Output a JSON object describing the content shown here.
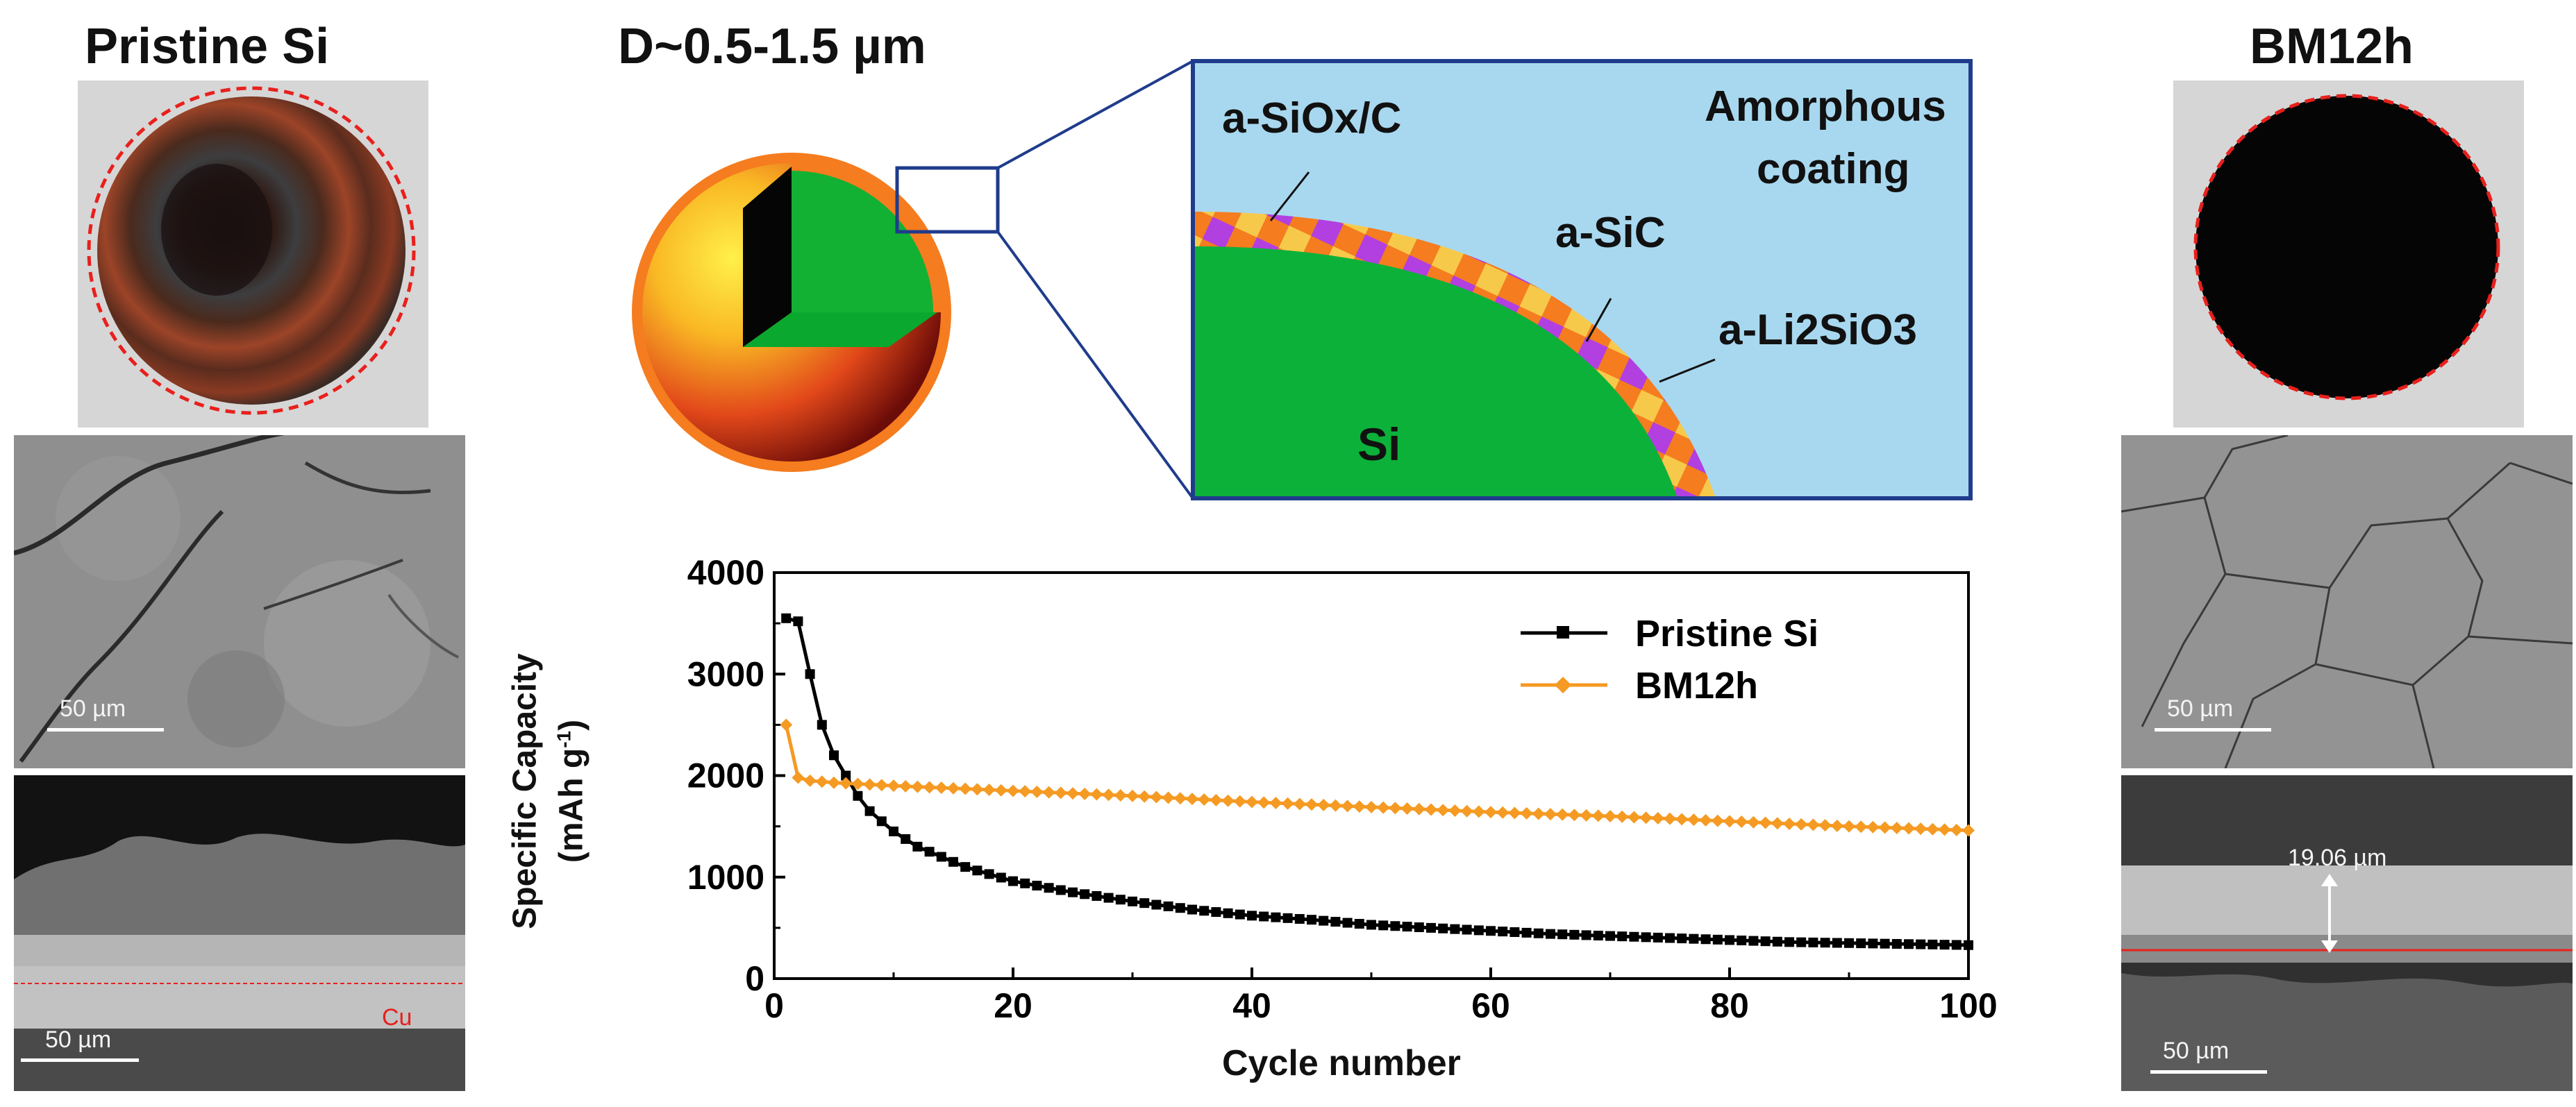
{
  "left_panel": {
    "title": "Pristine Si",
    "surface_scale": "50 µm",
    "cross_scale": "50 µm",
    "cross_layer_label": "Cu"
  },
  "right_panel": {
    "title": "BM12h",
    "surface_scale": "50 µm",
    "cross_scale": "50 µm",
    "thickness_label": "19.06 µm"
  },
  "schematic": {
    "diameter_label": "D~0.5-1.5 µm",
    "label_siox": "a-SiOx/C",
    "label_amorphous": "Amorphous",
    "label_coating": "coating",
    "label_sic": "a-SiC",
    "label_li2sio3": "a-Li2SiO3",
    "label_si": "Si"
  },
  "colors": {
    "core_green": "#0bb03a",
    "shell_orange": "#f57c1f",
    "checker_yellow": "#f7c94a",
    "checker_purple": "#b23fe0",
    "inset_bg": "#a8d8ef",
    "inset_border": "#1f3c8c",
    "pristine_series": "#000000",
    "bm12h_series": "#f59a23",
    "dashed_circle": "#e8201c"
  },
  "chart_data": {
    "type": "line",
    "title": "",
    "xlabel": "Cycle number",
    "ylabel": "Specific Capacity (mAh g-1)",
    "ylabel_line1": "Specific Capacity",
    "ylabel_line2": "(mAh g",
    "ylabel_sup": "-1",
    "ylabel_close": ")",
    "xlim": [
      0,
      100
    ],
    "ylim": [
      0,
      4000
    ],
    "xticks": [
      "0",
      "20",
      "40",
      "60",
      "80",
      "100"
    ],
    "yticks": [
      "0",
      "1000",
      "2000",
      "3000",
      "4000"
    ],
    "legend_position": "top-right",
    "series": [
      {
        "name": "Pristine Si",
        "x": [
          1,
          2,
          3,
          4,
          5,
          6,
          7,
          8,
          9,
          10,
          12,
          14,
          16,
          18,
          20,
          25,
          30,
          35,
          40,
          45,
          50,
          55,
          60,
          65,
          70,
          75,
          80,
          85,
          90,
          95,
          100
        ],
        "values": [
          3550,
          3520,
          3000,
          2500,
          2200,
          2000,
          1800,
          1650,
          1550,
          1450,
          1300,
          1200,
          1100,
          1030,
          960,
          850,
          760,
          680,
          620,
          580,
          530,
          500,
          470,
          440,
          420,
          400,
          380,
          360,
          350,
          340,
          330
        ]
      },
      {
        "name": "BM12h",
        "x": [
          1,
          2,
          3,
          5,
          10,
          20,
          30,
          40,
          50,
          60,
          70,
          80,
          90,
          100
        ],
        "values": [
          2500,
          1980,
          1950,
          1930,
          1900,
          1850,
          1800,
          1740,
          1690,
          1640,
          1600,
          1550,
          1500,
          1460
        ]
      }
    ]
  }
}
